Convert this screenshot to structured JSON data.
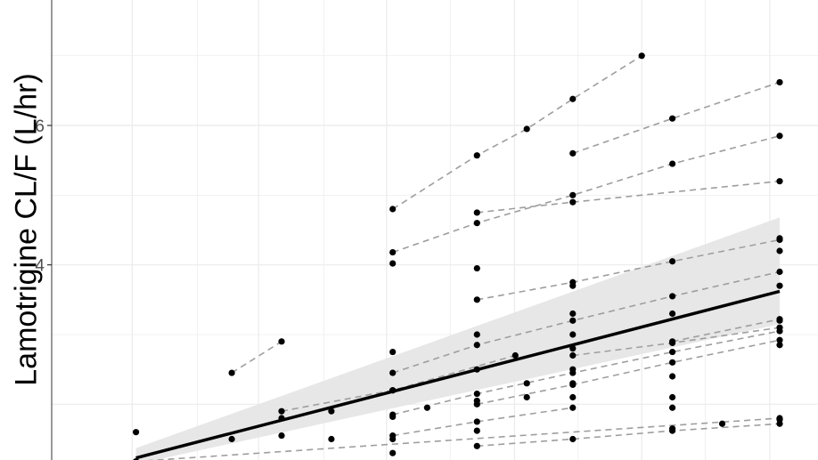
{
  "chart_data": {
    "type": "scatter",
    "ylabel": "Lamotrigine CL/F (L/hr)",
    "xlabel": "",
    "title": "",
    "yticks": [
      4,
      6
    ],
    "ytick_labels": [
      "4",
      "6"
    ],
    "ylim": [
      1.2,
      7.8
    ],
    "xlim": [
      0,
      1
    ],
    "grid": true,
    "legend": "none",
    "colors": {
      "points": "#000000",
      "dashed": "#9e9e9e",
      "fit": "#000000",
      "ribbon": "#e6e6e6",
      "grid": "#ebebeb",
      "border": "#333333"
    },
    "fit_line": {
      "x": [
        0.11,
        0.95
      ],
      "y": [
        1.23,
        3.62
      ]
    },
    "ribbon": {
      "x": [
        0.11,
        0.95
      ],
      "lower": [
        1.14,
        3.15
      ],
      "upper": [
        1.37,
        4.68
      ]
    },
    "subjects": [
      {
        "x": [
          0.11,
          0.95
        ],
        "y": [
          1.18,
          1.8
        ]
      },
      {
        "x": [
          0.235,
          0.3
        ],
        "y": [
          2.45,
          2.9
        ]
      },
      {
        "x": [
          0.3,
          0.445,
          0.605
        ],
        "y": [
          1.9,
          2.2,
          2.7
        ]
      },
      {
        "x": [
          0.445,
          0.555,
          0.62,
          0.68,
          0.77
        ],
        "y": [
          4.8,
          5.57,
          5.95,
          6.38,
          7.0
        ]
      },
      {
        "x": [
          0.445,
          0.555,
          0.68,
          0.81,
          0.95
        ],
        "y": [
          4.18,
          4.6,
          5.0,
          5.45,
          5.85
        ]
      },
      {
        "x": [
          0.445,
          0.555,
          0.68,
          0.81,
          0.95
        ],
        "y": [
          2.45,
          2.85,
          3.2,
          3.55,
          3.9
        ]
      },
      {
        "x": [
          0.445,
          0.555,
          0.68,
          0.81,
          0.95
        ],
        "y": [
          1.85,
          2.15,
          2.45,
          2.75,
          3.05
        ]
      },
      {
        "x": [
          0.555,
          0.68,
          0.95
        ],
        "y": [
          4.75,
          4.9,
          5.2
        ]
      },
      {
        "x": [
          0.68,
          0.81,
          0.95
        ],
        "y": [
          5.6,
          6.1,
          6.62
        ]
      },
      {
        "x": [
          0.555,
          0.68,
          0.81,
          0.95
        ],
        "y": [
          3.5,
          3.75,
          4.05,
          4.36
        ]
      },
      {
        "x": [
          0.555,
          0.68,
          0.81,
          0.95
        ],
        "y": [
          2.0,
          2.28,
          2.6,
          2.92
        ]
      },
      {
        "x": [
          0.555,
          0.68,
          0.81,
          0.95
        ],
        "y": [
          1.4,
          1.5,
          1.62,
          1.72
        ]
      },
      {
        "x": [
          0.81,
          0.95
        ],
        "y": [
          2.9,
          3.22
        ]
      },
      {
        "x": [
          0.68,
          0.81,
          0.95
        ],
        "y": [
          2.7,
          2.88,
          3.1
        ]
      },
      {
        "x": [
          0.445,
          0.555,
          0.68
        ],
        "y": [
          1.55,
          1.75,
          1.95
        ]
      }
    ],
    "extra_points": {
      "x": [
        0.11,
        0.235,
        0.3,
        0.3,
        0.365,
        0.365,
        0.445,
        0.445,
        0.445,
        0.445,
        0.445,
        0.445,
        0.49,
        0.555,
        0.555,
        0.555,
        0.555,
        0.555,
        0.62,
        0.62,
        0.68,
        0.68,
        0.68,
        0.68,
        0.68,
        0.68,
        0.68,
        0.81,
        0.81,
        0.81,
        0.81,
        0.81,
        0.875,
        0.95,
        0.95,
        0.95,
        0.95,
        0.95,
        0.95
      ],
      "y": [
        1.6,
        1.5,
        1.55,
        1.8,
        1.9,
        1.5,
        4.02,
        2.75,
        2.2,
        1.82,
        1.5,
        1.3,
        1.95,
        3.95,
        3.0,
        2.5,
        2.05,
        1.62,
        2.3,
        2.1,
        3.7,
        3.3,
        3.0,
        2.8,
        2.5,
        2.3,
        2.1,
        3.3,
        2.4,
        2.1,
        1.95,
        1.65,
        1.72,
        4.38,
        4.2,
        3.7,
        3.2,
        2.85,
        1.78
      ]
    }
  }
}
